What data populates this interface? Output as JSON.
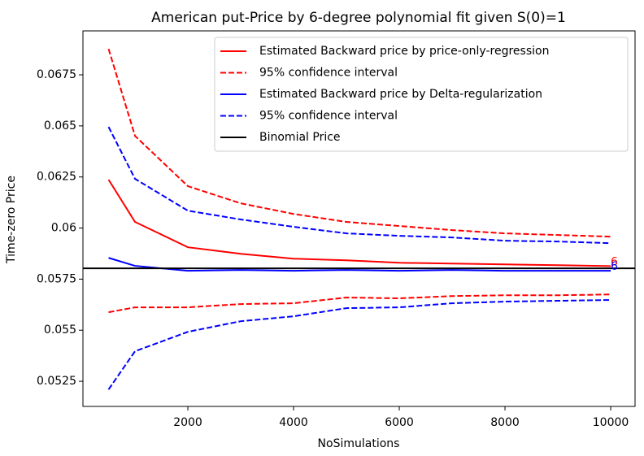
{
  "chart_data": {
    "type": "line",
    "title": "American put-Price by 6-degree polynomial fit given S(0)=1",
    "xlabel": "NoSimulations",
    "ylabel": "Time-zero Price",
    "x": [
      500,
      1000,
      2000,
      3000,
      4000,
      5000,
      6000,
      7000,
      8000,
      9000,
      10000
    ],
    "series": [
      {
        "name": "Estimated Backward price by price-only-regression",
        "color": "#ff0000",
        "dashed": false,
        "values": [
          0.06237,
          0.0603,
          0.05906,
          0.05874,
          0.0585,
          0.05842,
          0.0583,
          0.05826,
          0.05822,
          0.05818,
          0.05814
        ]
      },
      {
        "name": "95% confidence interval",
        "color": "#ff0000",
        "dashed": true,
        "values": [
          0.06877,
          0.06451,
          0.06205,
          0.06121,
          0.06069,
          0.0603,
          0.0601,
          0.0599,
          0.05974,
          0.05966,
          0.05958
        ]
      },
      {
        "name": "Estimated Backward price by Delta-regularization",
        "color": "#0000ff",
        "dashed": false,
        "values": [
          0.05854,
          0.05815,
          0.05791,
          0.05795,
          0.05791,
          0.05795,
          0.05791,
          0.05795,
          0.05791,
          0.05791,
          0.05791
        ]
      },
      {
        "name": "95% confidence interval",
        "color": "#0000ff",
        "dashed": true,
        "values": [
          0.06495,
          0.06241,
          0.06085,
          0.06042,
          0.06006,
          0.05974,
          0.05962,
          0.05954,
          0.05938,
          0.05934,
          0.05926
        ]
      },
      {
        "name": "Binomial Price",
        "color": "#000000",
        "dashed": false,
        "hline": 0.05803
      }
    ],
    "extra_lines": [
      {
        "color": "#ff0000",
        "dashed": true,
        "values": [
          0.05588,
          0.05612,
          0.05612,
          0.05628,
          0.05632,
          0.0566,
          0.05656,
          0.05667,
          0.05671,
          0.05671,
          0.05675
        ]
      },
      {
        "color": "#0000ff",
        "dashed": true,
        "values": [
          0.0521,
          0.05397,
          0.05492,
          0.05544,
          0.05568,
          0.05608,
          0.05612,
          0.05632,
          0.0564,
          0.05644,
          0.05648
        ]
      }
    ],
    "annotations": [
      {
        "text": "6",
        "color": "#ff0000",
        "x": 10000,
        "y": 0.05814
      },
      {
        "text": "6",
        "color": "#0000ff",
        "x": 10000,
        "y": 0.05791
      }
    ],
    "xlim": [
      15,
      10461
    ],
    "ylim": [
      0.05127,
      0.06965
    ],
    "xticks": [
      2000,
      4000,
      6000,
      8000,
      10000
    ],
    "yticks": [
      0.0525,
      0.055,
      0.0575,
      0.06,
      0.0625,
      0.065,
      0.0675
    ],
    "legend": "upper right"
  }
}
